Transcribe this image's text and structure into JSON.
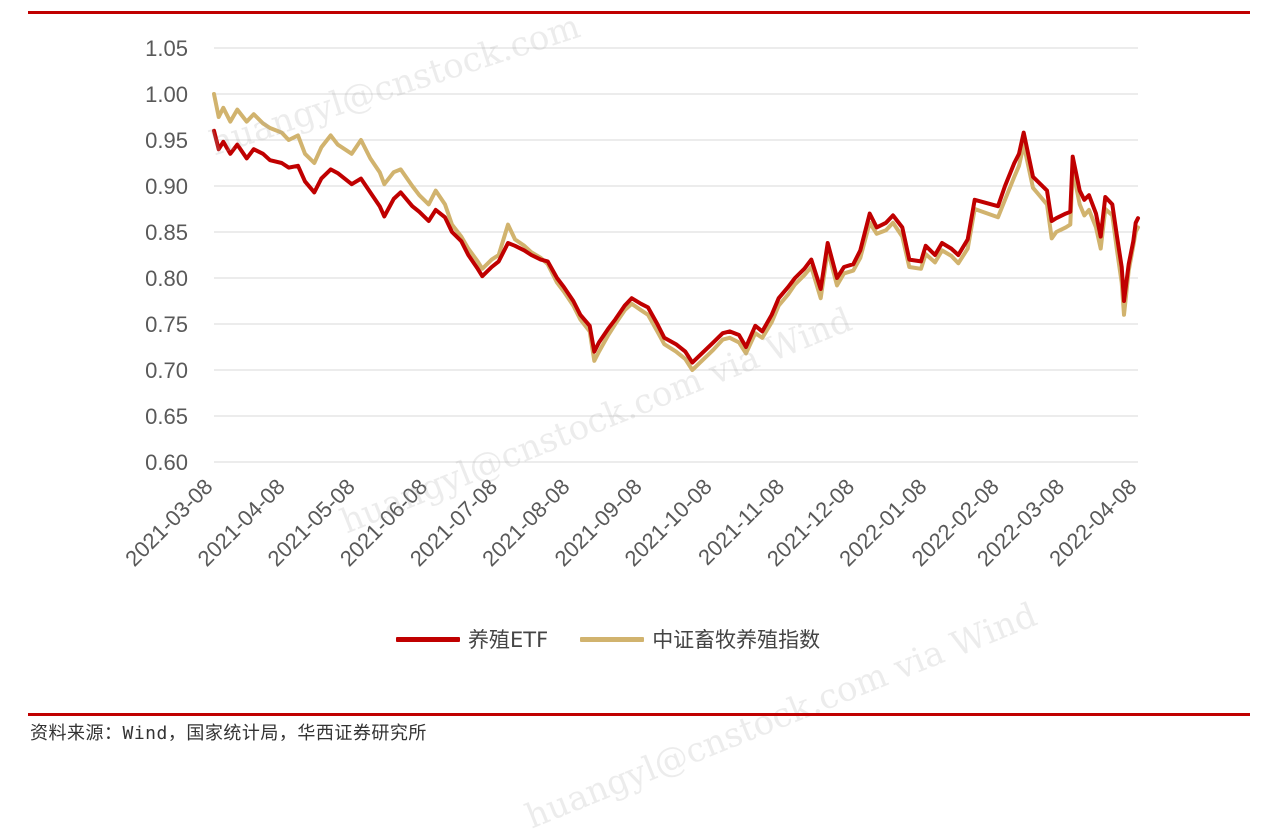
{
  "colors": {
    "rule": "#c00000",
    "etf": "#c00000",
    "index": "#d1b36e",
    "grid": "#d9d9d9",
    "tick": "#595959"
  },
  "watermarks": [
    "huangyl@cnstock.com",
    "huangyl@cnstock.com via Wind",
    "huangyl@cnstock.com via Wind"
  ],
  "source_note": "资料来源：Wind，国家统计局，华西证券研究所",
  "chart_data": {
    "type": "line",
    "ylim": [
      0.6,
      1.05
    ],
    "y_ticks": [
      "0.60",
      "0.65",
      "0.70",
      "0.75",
      "0.80",
      "0.85",
      "0.90",
      "0.95",
      "1.00",
      "1.05"
    ],
    "x_ticks": [
      "2021-03-08",
      "2021-04-08",
      "2021-05-08",
      "2021-06-08",
      "2021-07-08",
      "2021-08-08",
      "2021-09-08",
      "2021-10-08",
      "2021-11-08",
      "2021-12-08",
      "2022-01-08",
      "2022-02-08",
      "2022-03-08",
      "2022-04-08"
    ],
    "grid": true,
    "legend_position": "bottom",
    "series": [
      {
        "name": "养殖ETF",
        "color": "#c00000",
        "points": [
          [
            "2021-03-08",
            0.96
          ],
          [
            "2021-03-10",
            0.94
          ],
          [
            "2021-03-12",
            0.948
          ],
          [
            "2021-03-15",
            0.935
          ],
          [
            "2021-03-18",
            0.945
          ],
          [
            "2021-03-22",
            0.93
          ],
          [
            "2021-03-25",
            0.94
          ],
          [
            "2021-03-29",
            0.935
          ],
          [
            "2021-04-01",
            0.928
          ],
          [
            "2021-04-06",
            0.925
          ],
          [
            "2021-04-09",
            0.92
          ],
          [
            "2021-04-13",
            0.922
          ],
          [
            "2021-04-16",
            0.905
          ],
          [
            "2021-04-20",
            0.893
          ],
          [
            "2021-04-23",
            0.908
          ],
          [
            "2021-04-27",
            0.918
          ],
          [
            "2021-04-30",
            0.914
          ],
          [
            "2021-05-06",
            0.902
          ],
          [
            "2021-05-10",
            0.908
          ],
          [
            "2021-05-14",
            0.893
          ],
          [
            "2021-05-18",
            0.878
          ],
          [
            "2021-05-20",
            0.867
          ],
          [
            "2021-05-24",
            0.886
          ],
          [
            "2021-05-27",
            0.893
          ],
          [
            "2021-06-01",
            0.878
          ],
          [
            "2021-06-04",
            0.872
          ],
          [
            "2021-06-08",
            0.862
          ],
          [
            "2021-06-11",
            0.874
          ],
          [
            "2021-06-15",
            0.866
          ],
          [
            "2021-06-18",
            0.85
          ],
          [
            "2021-06-22",
            0.84
          ],
          [
            "2021-06-25",
            0.825
          ],
          [
            "2021-06-29",
            0.81
          ],
          [
            "2021-07-01",
            0.802
          ],
          [
            "2021-07-05",
            0.812
          ],
          [
            "2021-07-08",
            0.818
          ],
          [
            "2021-07-12",
            0.838
          ],
          [
            "2021-07-15",
            0.835
          ],
          [
            "2021-07-19",
            0.83
          ],
          [
            "2021-07-22",
            0.825
          ],
          [
            "2021-07-26",
            0.82
          ],
          [
            "2021-07-29",
            0.818
          ],
          [
            "2021-08-02",
            0.8
          ],
          [
            "2021-08-05",
            0.79
          ],
          [
            "2021-08-09",
            0.775
          ],
          [
            "2021-08-12",
            0.76
          ],
          [
            "2021-08-16",
            0.748
          ],
          [
            "2021-08-18",
            0.72
          ],
          [
            "2021-08-20",
            0.73
          ],
          [
            "2021-08-24",
            0.745
          ],
          [
            "2021-08-27",
            0.755
          ],
          [
            "2021-08-31",
            0.77
          ],
          [
            "2021-09-03",
            0.778
          ],
          [
            "2021-09-07",
            0.772
          ],
          [
            "2021-09-10",
            0.768
          ],
          [
            "2021-09-14",
            0.75
          ],
          [
            "2021-09-17",
            0.735
          ],
          [
            "2021-09-22",
            0.728
          ],
          [
            "2021-09-26",
            0.72
          ],
          [
            "2021-09-29",
            0.708
          ],
          [
            "2021-10-08",
            0.73
          ],
          [
            "2021-10-12",
            0.74
          ],
          [
            "2021-10-15",
            0.742
          ],
          [
            "2021-10-19",
            0.738
          ],
          [
            "2021-10-22",
            0.725
          ],
          [
            "2021-10-26",
            0.748
          ],
          [
            "2021-10-29",
            0.742
          ],
          [
            "2021-11-02",
            0.76
          ],
          [
            "2021-11-05",
            0.778
          ],
          [
            "2021-11-09",
            0.79
          ],
          [
            "2021-11-12",
            0.8
          ],
          [
            "2021-11-16",
            0.81
          ],
          [
            "2021-11-19",
            0.82
          ],
          [
            "2021-11-23",
            0.788
          ],
          [
            "2021-11-26",
            0.838
          ],
          [
            "2021-11-30",
            0.8
          ],
          [
            "2021-12-03",
            0.812
          ],
          [
            "2021-12-07",
            0.815
          ],
          [
            "2021-12-10",
            0.83
          ],
          [
            "2021-12-14",
            0.87
          ],
          [
            "2021-12-17",
            0.855
          ],
          [
            "2021-12-21",
            0.86
          ],
          [
            "2021-12-24",
            0.868
          ],
          [
            "2021-12-28",
            0.855
          ],
          [
            "2021-12-31",
            0.82
          ],
          [
            "2022-01-05",
            0.818
          ],
          [
            "2022-01-07",
            0.835
          ],
          [
            "2022-01-11",
            0.825
          ],
          [
            "2022-01-14",
            0.838
          ],
          [
            "2022-01-18",
            0.832
          ],
          [
            "2022-01-21",
            0.825
          ],
          [
            "2022-01-25",
            0.842
          ],
          [
            "2022-01-28",
            0.885
          ],
          [
            "2022-02-07",
            0.878
          ],
          [
            "2022-02-10",
            0.9
          ],
          [
            "2022-02-14",
            0.925
          ],
          [
            "2022-02-16",
            0.935
          ],
          [
            "2022-02-18",
            0.958
          ],
          [
            "2022-02-22",
            0.91
          ],
          [
            "2022-02-24",
            0.905
          ],
          [
            "2022-02-28",
            0.895
          ],
          [
            "2022-03-02",
            0.862
          ],
          [
            "2022-03-04",
            0.865
          ],
          [
            "2022-03-08",
            0.87
          ],
          [
            "2022-03-10",
            0.872
          ],
          [
            "2022-03-11",
            0.932
          ],
          [
            "2022-03-14",
            0.895
          ],
          [
            "2022-03-16",
            0.885
          ],
          [
            "2022-03-18",
            0.89
          ],
          [
            "2022-03-21",
            0.87
          ],
          [
            "2022-03-23",
            0.845
          ],
          [
            "2022-03-25",
            0.888
          ],
          [
            "2022-03-28",
            0.88
          ],
          [
            "2022-03-30",
            0.845
          ],
          [
            "2022-04-01",
            0.812
          ],
          [
            "2022-04-02",
            0.775
          ],
          [
            "2022-04-04",
            0.815
          ],
          [
            "2022-04-06",
            0.84
          ],
          [
            "2022-04-07",
            0.86
          ],
          [
            "2022-04-08",
            0.865
          ]
        ]
      },
      {
        "name": "中证畜牧养殖指数",
        "color": "#d1b36e",
        "points": [
          [
            "2021-03-08",
            1.0
          ],
          [
            "2021-03-10",
            0.975
          ],
          [
            "2021-03-12",
            0.985
          ],
          [
            "2021-03-15",
            0.97
          ],
          [
            "2021-03-18",
            0.983
          ],
          [
            "2021-03-22",
            0.97
          ],
          [
            "2021-03-25",
            0.978
          ],
          [
            "2021-03-29",
            0.968
          ],
          [
            "2021-04-01",
            0.963
          ],
          [
            "2021-04-06",
            0.958
          ],
          [
            "2021-04-09",
            0.95
          ],
          [
            "2021-04-13",
            0.955
          ],
          [
            "2021-04-16",
            0.935
          ],
          [
            "2021-04-20",
            0.925
          ],
          [
            "2021-04-23",
            0.942
          ],
          [
            "2021-04-27",
            0.955
          ],
          [
            "2021-04-30",
            0.945
          ],
          [
            "2021-05-06",
            0.935
          ],
          [
            "2021-05-10",
            0.95
          ],
          [
            "2021-05-14",
            0.93
          ],
          [
            "2021-05-18",
            0.915
          ],
          [
            "2021-05-20",
            0.902
          ],
          [
            "2021-05-24",
            0.915
          ],
          [
            "2021-05-27",
            0.918
          ],
          [
            "2021-06-01",
            0.9
          ],
          [
            "2021-06-04",
            0.89
          ],
          [
            "2021-06-08",
            0.88
          ],
          [
            "2021-06-11",
            0.895
          ],
          [
            "2021-06-15",
            0.88
          ],
          [
            "2021-06-18",
            0.858
          ],
          [
            "2021-06-22",
            0.845
          ],
          [
            "2021-06-25",
            0.832
          ],
          [
            "2021-06-29",
            0.818
          ],
          [
            "2021-07-01",
            0.81
          ],
          [
            "2021-07-05",
            0.82
          ],
          [
            "2021-07-08",
            0.825
          ],
          [
            "2021-07-12",
            0.858
          ],
          [
            "2021-07-15",
            0.842
          ],
          [
            "2021-07-19",
            0.835
          ],
          [
            "2021-07-22",
            0.828
          ],
          [
            "2021-07-26",
            0.822
          ],
          [
            "2021-07-29",
            0.815
          ],
          [
            "2021-08-02",
            0.795
          ],
          [
            "2021-08-05",
            0.785
          ],
          [
            "2021-08-09",
            0.77
          ],
          [
            "2021-08-12",
            0.755
          ],
          [
            "2021-08-16",
            0.742
          ],
          [
            "2021-08-18",
            0.71
          ],
          [
            "2021-08-20",
            0.72
          ],
          [
            "2021-08-24",
            0.738
          ],
          [
            "2021-08-27",
            0.75
          ],
          [
            "2021-08-31",
            0.765
          ],
          [
            "2021-09-03",
            0.772
          ],
          [
            "2021-09-07",
            0.765
          ],
          [
            "2021-09-10",
            0.76
          ],
          [
            "2021-09-14",
            0.742
          ],
          [
            "2021-09-17",
            0.728
          ],
          [
            "2021-09-22",
            0.72
          ],
          [
            "2021-09-26",
            0.712
          ],
          [
            "2021-09-29",
            0.7
          ],
          [
            "2021-10-08",
            0.722
          ],
          [
            "2021-10-12",
            0.733
          ],
          [
            "2021-10-15",
            0.735
          ],
          [
            "2021-10-19",
            0.73
          ],
          [
            "2021-10-22",
            0.718
          ],
          [
            "2021-10-26",
            0.74
          ],
          [
            "2021-10-29",
            0.735
          ],
          [
            "2021-11-02",
            0.752
          ],
          [
            "2021-11-05",
            0.77
          ],
          [
            "2021-11-09",
            0.782
          ],
          [
            "2021-11-12",
            0.793
          ],
          [
            "2021-11-16",
            0.803
          ],
          [
            "2021-11-19",
            0.812
          ],
          [
            "2021-11-23",
            0.778
          ],
          [
            "2021-11-26",
            0.83
          ],
          [
            "2021-11-30",
            0.792
          ],
          [
            "2021-12-03",
            0.805
          ],
          [
            "2021-12-07",
            0.808
          ],
          [
            "2021-12-10",
            0.822
          ],
          [
            "2021-12-14",
            0.86
          ],
          [
            "2021-12-17",
            0.848
          ],
          [
            "2021-12-21",
            0.852
          ],
          [
            "2021-12-24",
            0.86
          ],
          [
            "2021-12-28",
            0.845
          ],
          [
            "2021-12-31",
            0.812
          ],
          [
            "2022-01-05",
            0.81
          ],
          [
            "2022-01-07",
            0.826
          ],
          [
            "2022-01-11",
            0.817
          ],
          [
            "2022-01-14",
            0.83
          ],
          [
            "2022-01-18",
            0.824
          ],
          [
            "2022-01-21",
            0.816
          ],
          [
            "2022-01-25",
            0.832
          ],
          [
            "2022-01-28",
            0.875
          ],
          [
            "2022-02-07",
            0.866
          ],
          [
            "2022-02-10",
            0.885
          ],
          [
            "2022-02-14",
            0.91
          ],
          [
            "2022-02-16",
            0.922
          ],
          [
            "2022-02-18",
            0.945
          ],
          [
            "2022-02-22",
            0.898
          ],
          [
            "2022-02-24",
            0.892
          ],
          [
            "2022-02-28",
            0.88
          ],
          [
            "2022-03-02",
            0.843
          ],
          [
            "2022-03-04",
            0.85
          ],
          [
            "2022-03-08",
            0.855
          ],
          [
            "2022-03-10",
            0.858
          ],
          [
            "2022-03-11",
            0.918
          ],
          [
            "2022-03-14",
            0.88
          ],
          [
            "2022-03-16",
            0.868
          ],
          [
            "2022-03-18",
            0.874
          ],
          [
            "2022-03-21",
            0.855
          ],
          [
            "2022-03-23",
            0.832
          ],
          [
            "2022-03-25",
            0.875
          ],
          [
            "2022-03-28",
            0.868
          ],
          [
            "2022-03-30",
            0.83
          ],
          [
            "2022-04-01",
            0.795
          ],
          [
            "2022-04-02",
            0.76
          ],
          [
            "2022-04-04",
            0.808
          ],
          [
            "2022-04-06",
            0.835
          ],
          [
            "2022-04-07",
            0.85
          ],
          [
            "2022-04-08",
            0.855
          ]
        ]
      }
    ]
  }
}
